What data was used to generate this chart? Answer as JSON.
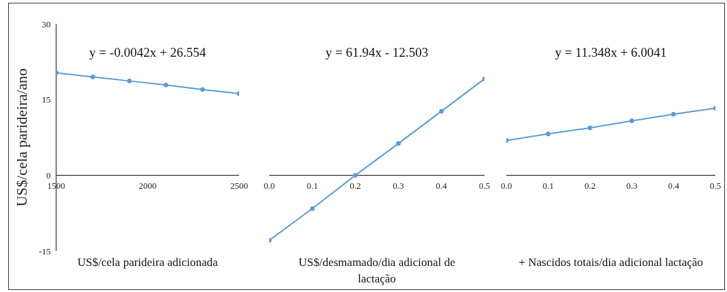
{
  "chart_data": [
    {
      "type": "line",
      "ylabel": "US$/cela parideira/ano",
      "xlabel": "US$/cela parideira adicionada",
      "annotations": [
        "y = -0.0042x + 26.554"
      ],
      "x": [
        1500,
        1700,
        1900,
        2100,
        2300,
        2500
      ],
      "values": [
        20.3,
        19.5,
        18.7,
        17.9,
        17.0,
        16.2
      ],
      "color": "#5b9bd5",
      "marker": "circle",
      "xlim": [
        1500,
        2500
      ],
      "xticks": [
        1500,
        2000,
        2500
      ],
      "ylim": [
        -15,
        30
      ],
      "yticks": [
        -15,
        0,
        15,
        30
      ]
    },
    {
      "type": "line",
      "xlabel": "US$/desmamado/dia adicional de lactação",
      "annotations": [
        "y = 61.94x - 12.503"
      ],
      "x": [
        0,
        0.1,
        0.2,
        0.3,
        0.4,
        0.5
      ],
      "values": [
        -12.9,
        -6.6,
        0,
        6.3,
        12.7,
        19.1
      ],
      "color": "#5b9bd5",
      "marker": "circle",
      "xlim": [
        0,
        0.5
      ],
      "xticks": [
        {
          "value": 0,
          "label": "0.0"
        },
        {
          "value": 0.1,
          "label": "0.1"
        },
        {
          "value": 0.2,
          "label": "0.2"
        },
        {
          "value": 0.3,
          "label": "0.3"
        },
        {
          "value": 0.4,
          "label": "0.4"
        },
        {
          "value": 0.5,
          "label": "0.5"
        }
      ],
      "ylim": [
        -15,
        30
      ],
      "yticks": [
        -15,
        0,
        15,
        30
      ],
      "tick_labels": "x"
    },
    {
      "type": "line",
      "xlabel": "+ Nascidos totais/dia adicional lactação",
      "annotations": [
        "y = 11.348x + 6.0041"
      ],
      "x": [
        0,
        0.1,
        0.2,
        0.3,
        0.4,
        0.5
      ],
      "values": [
        6.9,
        8.2,
        9.4,
        10.8,
        12.1,
        13.3
      ],
      "color": "#5b9bd5",
      "marker": "circle",
      "xlim": [
        0,
        0.5
      ],
      "xticks": [
        {
          "value": 0,
          "label": "0.0"
        },
        {
          "value": 0.1,
          "label": "0.1"
        },
        {
          "value": 0.2,
          "label": "0.2"
        },
        {
          "value": 0.3,
          "label": "0.3"
        },
        {
          "value": 0.4,
          "label": "0.4"
        },
        {
          "value": 0.5,
          "label": "0.5"
        }
      ],
      "ylim": [
        -15,
        30
      ],
      "yticks": [
        -15,
        0,
        15,
        30
      ],
      "tick_labels": "x"
    }
  ]
}
